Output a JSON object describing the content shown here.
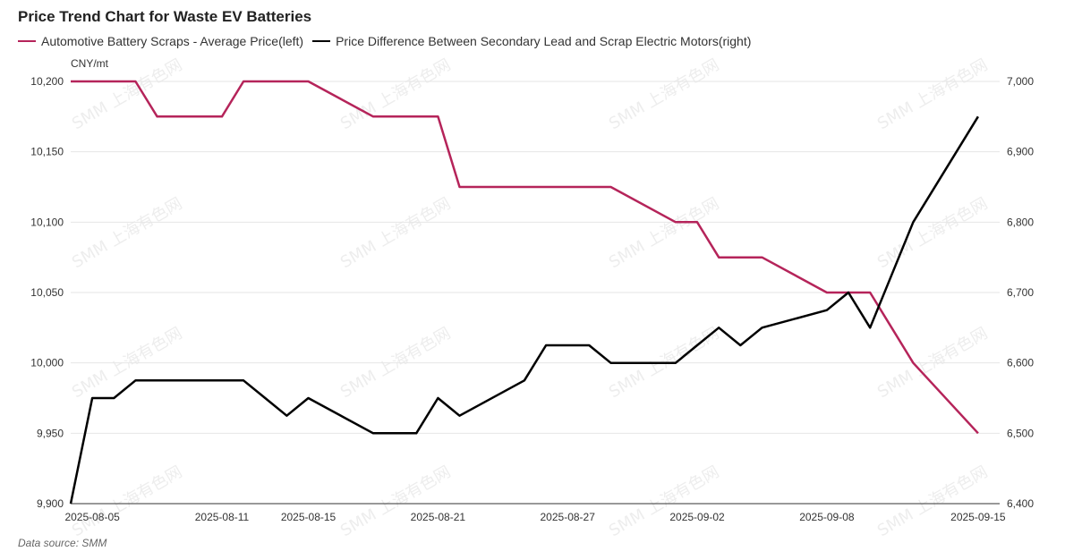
{
  "chart_data": {
    "type": "line",
    "title": "Price Trend Chart for Waste EV Batteries",
    "unit_label": "CNY/mt",
    "source": "Data source:  SMM",
    "watermark": "SMM 上海有色网",
    "x_ticks": [
      "2025-08-05",
      "2025-08-11",
      "2025-08-15",
      "2025-08-21",
      "2025-08-27",
      "2025-09-02",
      "2025-09-08",
      "2025-09-15"
    ],
    "y_left": {
      "min": 9900,
      "max": 10200,
      "ticks": [
        "9,900",
        "9,950",
        "10,000",
        "10,050",
        "10,100",
        "10,150",
        "10,200"
      ]
    },
    "y_right": {
      "min": 6400,
      "max": 7000,
      "ticks": [
        "6,400",
        "6,500",
        "6,600",
        "6,700",
        "6,800",
        "6,900",
        "7,000"
      ]
    },
    "x_range": [
      "2025-08-04",
      "2025-09-16"
    ],
    "grid": true,
    "legend_position": "top-left",
    "series": [
      {
        "name": "Automotive Battery Scraps - Average Price(left)",
        "axis": "left",
        "color": "#b5245a",
        "points": [
          [
            "2025-08-04",
            10200
          ],
          [
            "2025-08-05",
            10200
          ],
          [
            "2025-08-06",
            10200
          ],
          [
            "2025-08-07",
            10200
          ],
          [
            "2025-08-08",
            10175
          ],
          [
            "2025-08-11",
            10175
          ],
          [
            "2025-08-12",
            10200
          ],
          [
            "2025-08-13",
            10200
          ],
          [
            "2025-08-14",
            10200
          ],
          [
            "2025-08-15",
            10200
          ],
          [
            "2025-08-18",
            10175
          ],
          [
            "2025-08-19",
            10175
          ],
          [
            "2025-08-20",
            10175
          ],
          [
            "2025-08-21",
            10175
          ],
          [
            "2025-08-22",
            10125
          ],
          [
            "2025-08-25",
            10125
          ],
          [
            "2025-08-26",
            10125
          ],
          [
            "2025-08-27",
            10125
          ],
          [
            "2025-08-28",
            10125
          ],
          [
            "2025-08-29",
            10125
          ],
          [
            "2025-09-01",
            10100
          ],
          [
            "2025-09-02",
            10100
          ],
          [
            "2025-09-03",
            10075
          ],
          [
            "2025-09-04",
            10075
          ],
          [
            "2025-09-05",
            10075
          ],
          [
            "2025-09-08",
            10050
          ],
          [
            "2025-09-09",
            10050
          ],
          [
            "2025-09-10",
            10050
          ],
          [
            "2025-09-11",
            10025
          ],
          [
            "2025-09-12",
            10000
          ],
          [
            "2025-09-15",
            9950
          ]
        ]
      },
      {
        "name": "Price Difference Between Secondary Lead and Scrap Electric Motors(right)",
        "axis": "right",
        "color": "#000000",
        "points": [
          [
            "2025-08-04",
            6400
          ],
          [
            "2025-08-05",
            6550
          ],
          [
            "2025-08-06",
            6550
          ],
          [
            "2025-08-07",
            6575
          ],
          [
            "2025-08-08",
            6575
          ],
          [
            "2025-08-11",
            6575
          ],
          [
            "2025-08-12",
            6575
          ],
          [
            "2025-08-13",
            6550
          ],
          [
            "2025-08-14",
            6525
          ],
          [
            "2025-08-15",
            6550
          ],
          [
            "2025-08-18",
            6500
          ],
          [
            "2025-08-19",
            6500
          ],
          [
            "2025-08-20",
            6500
          ],
          [
            "2025-08-21",
            6550
          ],
          [
            "2025-08-22",
            6525
          ],
          [
            "2025-08-25",
            6575
          ],
          [
            "2025-08-26",
            6625
          ],
          [
            "2025-08-27",
            6625
          ],
          [
            "2025-08-28",
            6625
          ],
          [
            "2025-08-29",
            6600
          ],
          [
            "2025-09-01",
            6600
          ],
          [
            "2025-09-02",
            6625
          ],
          [
            "2025-09-03",
            6650
          ],
          [
            "2025-09-04",
            6625
          ],
          [
            "2025-09-05",
            6650
          ],
          [
            "2025-09-08",
            6675
          ],
          [
            "2025-09-09",
            6700
          ],
          [
            "2025-09-10",
            6650
          ],
          [
            "2025-09-11",
            6725
          ],
          [
            "2025-09-12",
            6800
          ],
          [
            "2025-09-15",
            6950
          ]
        ]
      }
    ]
  }
}
